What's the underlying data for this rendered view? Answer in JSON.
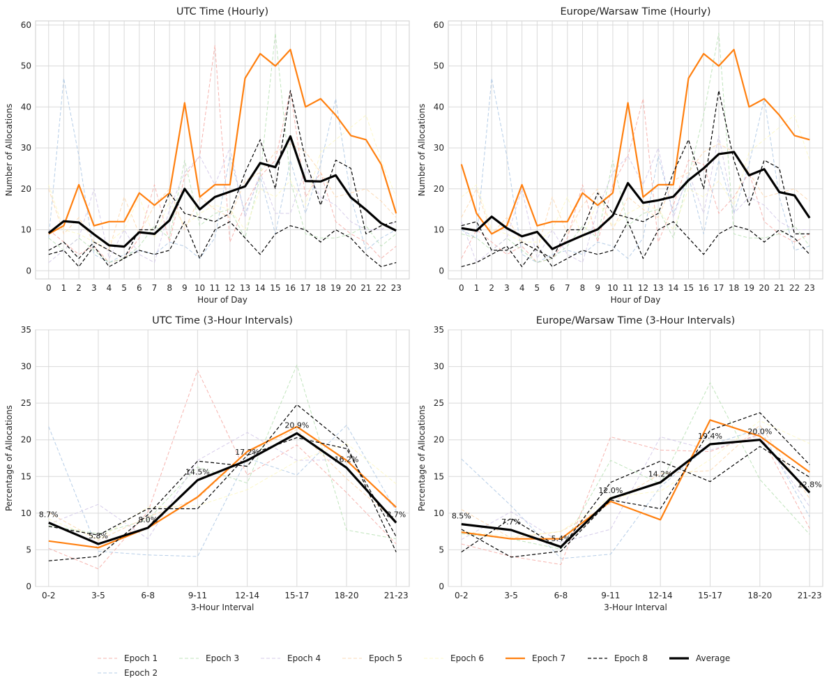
{
  "figure": {
    "legend": {
      "placement": "bottom-center",
      "entries": [
        "Epoch 1",
        "Epoch 2",
        "Epoch 3",
        "Epoch 4",
        "Epoch 5",
        "Epoch 6",
        "Epoch 7",
        "Epoch 8",
        "Average"
      ]
    }
  },
  "series_styles": {
    "Epoch 1": {
      "color": "#f4a6a0",
      "dash": "dashed",
      "emphasis": "faint"
    },
    "Epoch 2": {
      "color": "#a8c4e3",
      "dash": "dashed",
      "emphasis": "faint"
    },
    "Epoch 3": {
      "color": "#b5dfb0",
      "dash": "dashed",
      "emphasis": "faint"
    },
    "Epoch 4": {
      "color": "#cfc3e6",
      "dash": "dashed",
      "emphasis": "faint"
    },
    "Epoch 5": {
      "color": "#fbd3a8",
      "dash": "dashed",
      "emphasis": "faint"
    },
    "Epoch 6": {
      "color": "#fcf7c0",
      "dash": "dashed",
      "emphasis": "faint"
    },
    "Epoch 7": {
      "color": "#ff7f0e",
      "dash": "solid",
      "emphasis": "medium"
    },
    "Epoch 8": {
      "color": "#000000",
      "dash": "dashed",
      "emphasis": "medium"
    },
    "Average": {
      "color": "#000000",
      "dash": "solid",
      "emphasis": "bold"
    }
  },
  "chart_data": [
    {
      "type": "line",
      "title": "UTC Time (Hourly)",
      "xlabel": "Hour of Day",
      "ylabel": "Number of Allocations",
      "x": [
        "0",
        "1",
        "2",
        "3",
        "4",
        "5",
        "6",
        "7",
        "8",
        "9",
        "10",
        "11",
        "12",
        "13",
        "14",
        "15",
        "16",
        "17",
        "18",
        "19",
        "20",
        "21",
        "22",
        "23"
      ],
      "ylim": [
        -2,
        61
      ],
      "yticks": [
        0,
        10,
        20,
        30,
        40,
        50,
        60
      ],
      "grid": true,
      "series": [
        {
          "name": "Epoch 1",
          "values": [
            10,
            7,
            4,
            6,
            2,
            3,
            8,
            21,
            7,
            23,
            28,
            55,
            7,
            16,
            23,
            27,
            44,
            18,
            24,
            12,
            9,
            7,
            3,
            6
          ]
        },
        {
          "name": "Epoch 2",
          "values": [
            8,
            47,
            28,
            4,
            2,
            4,
            5,
            4,
            7,
            6,
            3,
            8,
            28,
            14,
            23,
            9,
            27,
            14,
            26,
            42,
            18,
            5,
            8,
            10
          ]
        },
        {
          "name": "Epoch 3",
          "values": [
            8,
            5,
            8,
            5,
            2,
            3,
            6,
            11,
            8,
            27,
            11,
            14,
            15,
            8,
            23,
            58,
            22,
            9,
            8,
            8,
            9,
            11,
            6,
            9
          ]
        },
        {
          "name": "Epoch 4",
          "values": [
            2,
            5,
            8,
            20,
            3,
            10,
            4,
            2,
            15,
            24,
            28,
            21,
            30,
            13,
            24,
            14,
            14,
            25,
            18,
            16,
            12,
            10,
            10,
            12
          ]
        },
        {
          "name": "Epoch 5",
          "values": [
            20,
            9,
            13,
            7,
            5,
            18,
            9,
            16,
            20,
            10,
            18,
            15,
            13,
            22,
            24,
            29,
            31,
            29,
            24,
            18,
            19,
            20,
            17,
            13
          ]
        },
        {
          "name": "Epoch 6",
          "values": [
            21,
            10,
            9,
            7,
            7,
            10,
            18,
            8,
            17,
            11,
            14,
            16,
            15,
            10,
            20,
            18,
            22,
            16,
            29,
            32,
            35,
            38,
            27,
            18
          ]
        },
        {
          "name": "Epoch 7",
          "values": [
            9,
            11,
            21,
            11,
            12,
            12,
            19,
            16,
            19,
            41,
            18,
            21,
            21,
            47,
            53,
            50,
            54,
            40,
            42,
            38,
            33,
            32,
            26,
            14
          ]
        },
        {
          "name": "Epoch 8",
          "values": [
            5,
            7,
            3,
            7,
            5,
            3,
            10,
            10,
            19,
            14,
            13,
            12,
            14,
            24,
            32,
            20,
            44,
            27,
            16,
            27,
            25,
            9,
            11,
            12
          ]
        },
        {
          "name": "Epoch 8",
          "values": [
            4,
            5,
            1,
            6,
            1,
            3,
            5,
            4,
            5,
            12,
            3,
            10,
            12,
            8,
            4,
            9,
            11,
            10,
            7,
            10,
            8,
            4,
            1,
            2
          ]
        },
        {
          "name": "Average",
          "values": [
            9.2,
            12.1,
            11.8,
            8.9,
            6.2,
            5.9,
            9.4,
            9.0,
            12.3,
            20.0,
            15.0,
            18.0,
            19.3,
            20.6,
            26.3,
            25.3,
            32.8,
            21.9,
            21.8,
            23.3,
            17.9,
            14.9,
            11.6,
            9.8
          ]
        }
      ]
    },
    {
      "type": "line",
      "title": "Europe/Warsaw Time (Hourly)",
      "xlabel": "Hour of Day",
      "ylabel": "Number of Allocations",
      "x": [
        "0",
        "1",
        "2",
        "3",
        "4",
        "5",
        "6",
        "7",
        "8",
        "9",
        "10",
        "11",
        "12",
        "13",
        "14",
        "15",
        "16",
        "17",
        "18",
        "19",
        "20",
        "21",
        "22",
        "23"
      ],
      "ylim": [
        -2,
        61
      ],
      "yticks": [
        0,
        10,
        20,
        30,
        40,
        50,
        60
      ],
      "grid": true,
      "series": [
        {
          "name": "Epoch 1",
          "values": [
            3,
            10,
            7,
            4,
            6,
            2,
            3,
            8,
            21,
            7,
            21,
            28,
            42,
            7,
            16,
            27,
            26,
            14,
            18,
            24,
            12,
            9,
            7,
            9
          ]
        },
        {
          "name": "Epoch 2",
          "values": [
            10,
            8,
            47,
            28,
            4,
            2,
            4,
            5,
            4,
            7,
            6,
            3,
            8,
            28,
            14,
            23,
            9,
            27,
            14,
            26,
            42,
            18,
            5,
            6
          ]
        },
        {
          "name": "Epoch 3",
          "values": [
            9,
            8,
            5,
            8,
            5,
            2,
            3,
            6,
            11,
            8,
            27,
            11,
            14,
            15,
            8,
            23,
            38,
            58,
            9,
            8,
            8,
            9,
            11,
            6
          ]
        },
        {
          "name": "Epoch 4",
          "values": [
            12,
            2,
            5,
            8,
            20,
            3,
            10,
            4,
            2,
            15,
            24,
            28,
            21,
            30,
            13,
            24,
            14,
            33,
            14,
            18,
            16,
            12,
            10,
            10
          ]
        },
        {
          "name": "Epoch 5",
          "values": [
            13,
            20,
            9,
            13,
            7,
            5,
            18,
            9,
            16,
            20,
            10,
            18,
            15,
            13,
            22,
            24,
            29,
            31,
            29,
            24,
            18,
            19,
            20,
            17
          ]
        },
        {
          "name": "Epoch 6",
          "values": [
            18,
            21,
            10,
            9,
            7,
            7,
            10,
            18,
            8,
            17,
            11,
            14,
            16,
            15,
            10,
            20,
            18,
            22,
            16,
            29,
            32,
            35,
            38,
            27
          ]
        },
        {
          "name": "Epoch 7",
          "values": [
            26,
            14,
            9,
            11,
            21,
            11,
            12,
            12,
            19,
            16,
            19,
            41,
            18,
            21,
            21,
            47,
            53,
            50,
            54,
            40,
            42,
            38,
            33,
            32
          ]
        },
        {
          "name": "Epoch 8",
          "values": [
            11,
            12,
            5,
            5,
            7,
            5,
            3,
            10,
            10,
            19,
            14,
            13,
            12,
            14,
            24,
            32,
            20,
            44,
            27,
            16,
            27,
            25,
            9,
            9
          ]
        },
        {
          "name": "Epoch 8",
          "values": [
            1,
            2,
            4,
            6,
            1,
            6,
            1,
            3,
            5,
            4,
            5,
            12,
            3,
            10,
            12,
            8,
            4,
            9,
            11,
            10,
            7,
            10,
            8,
            4
          ]
        },
        {
          "name": "Average",
          "values": [
            10.4,
            9.8,
            13.2,
            10.4,
            8.4,
            9.5,
            5.3,
            7.0,
            8.6,
            10.1,
            13.5,
            21.4,
            16.6,
            17.2,
            18.1,
            22.1,
            25.0,
            28.5,
            29.0,
            23.3,
            24.8,
            19.2,
            18.4,
            12.9
          ]
        }
      ]
    },
    {
      "type": "line",
      "title": "UTC Time (3-Hour Intervals)",
      "xlabel": "3-Hour Interval",
      "ylabel": "Percentage of Allocations",
      "x": [
        "0-2",
        "3-5",
        "6-8",
        "9-11",
        "12-14",
        "15-17",
        "18-20",
        "21-23"
      ],
      "ylim": [
        0,
        35
      ],
      "yticks": [
        0,
        5,
        10,
        15,
        20,
        25,
        30,
        35
      ],
      "grid": true,
      "series": [
        {
          "name": "Epoch 1",
          "values": [
            5.2,
            2.4,
            10.2,
            29.5,
            15.2,
            19.3,
            12.8,
            5.8
          ]
        },
        {
          "name": "Epoch 2",
          "values": [
            21.8,
            4.8,
            4.3,
            4.1,
            17.5,
            15.2,
            22.0,
            10.3
          ]
        },
        {
          "name": "Epoch 3",
          "values": [
            8.3,
            7.2,
            9.1,
            16.3,
            14.1,
            30.2,
            7.7,
            6.5
          ]
        },
        {
          "name": "Epoch 4",
          "values": [
            8.5,
            11.2,
            6.5,
            17.2,
            21.0,
            17.2,
            17.3,
            10.6
          ]
        },
        {
          "name": "Epoch 5",
          "values": [
            10.1,
            6.3,
            9.5,
            12.0,
            18.3,
            21.4,
            14.7,
            8.9
          ]
        },
        {
          "name": "Epoch 6",
          "values": [
            9.2,
            6.5,
            10.8,
            11.0,
            13.2,
            17.1,
            19.5,
            14.0
          ]
        },
        {
          "name": "Epoch 7",
          "values": [
            6.2,
            5.3,
            8.0,
            12.2,
            18.4,
            21.8,
            17.2,
            10.8
          ]
        },
        {
          "name": "Epoch 8",
          "values": [
            8.2,
            7.0,
            10.6,
            10.6,
            17.9,
            20.3,
            18.8,
            6.8
          ]
        },
        {
          "name": "Epoch 8",
          "values": [
            3.5,
            4.1,
            9.8,
            17.1,
            16.4,
            24.8,
            19.3,
            4.7
          ]
        },
        {
          "name": "Average",
          "values": [
            8.7,
            5.8,
            8.0,
            14.5,
            17.2,
            20.9,
            16.2,
            8.7
          ]
        }
      ],
      "data_labels": [
        "8.7%",
        "5.8%",
        "8.0%",
        "14.5%",
        "17.2%",
        "20.9%",
        "16.2%",
        "8.7%"
      ]
    },
    {
      "type": "line",
      "title": "Europe/Warsaw Time (3-Hour Intervals)",
      "xlabel": "3-Hour Interval",
      "ylabel": "Percentage of Allocations",
      "x": [
        "0-2",
        "3-5",
        "6-8",
        "9-11",
        "12-14",
        "15-17",
        "18-20",
        "21-23"
      ],
      "ylim": [
        0,
        35
      ],
      "yticks": [
        0,
        5,
        10,
        15,
        20,
        25,
        30,
        35
      ],
      "grid": true,
      "series": [
        {
          "name": "Epoch 1",
          "values": [
            5.8,
            4.1,
            3.0,
            20.4,
            18.6,
            18.4,
            20.8,
            7.9
          ]
        },
        {
          "name": "Epoch 2",
          "values": [
            17.4,
            11.0,
            3.8,
            4.4,
            13.6,
            19.3,
            21.5,
            9.5
          ]
        },
        {
          "name": "Epoch 3",
          "values": [
            7.2,
            6.5,
            5.1,
            17.2,
            14.0,
            27.8,
            14.6,
            7.1
          ]
        },
        {
          "name": "Epoch 4",
          "values": [
            6.4,
            10.2,
            6.0,
            7.8,
            20.4,
            18.6,
            20.6,
            10.9
          ]
        },
        {
          "name": "Epoch 5",
          "values": [
            10.5,
            6.6,
            7.5,
            11.3,
            15.4,
            15.8,
            22.0,
            12.0
          ]
        },
        {
          "name": "Epoch 6",
          "values": [
            7.5,
            6.8,
            7.5,
            12.2,
            13.0,
            17.3,
            22.6,
            19.5
          ]
        },
        {
          "name": "Epoch 7",
          "values": [
            7.4,
            6.5,
            6.5,
            11.6,
            9.1,
            22.7,
            20.5,
            15.6
          ]
        },
        {
          "name": "Epoch 8",
          "values": [
            7.8,
            4.0,
            4.8,
            11.8,
            10.6,
            21.3,
            23.7,
            16.6
          ]
        },
        {
          "name": "Epoch 8",
          "values": [
            4.7,
            9.3,
            5.2,
            14.2,
            17.1,
            14.3,
            19.1,
            14.9
          ]
        },
        {
          "name": "Average",
          "values": [
            8.5,
            7.7,
            5.4,
            12.0,
            14.2,
            19.4,
            20.0,
            12.8
          ]
        }
      ],
      "data_labels": [
        "8.5%",
        "7.7%",
        "5.4%",
        "12.0%",
        "14.2%",
        "19.4%",
        "20.0%",
        "12.8%"
      ]
    }
  ]
}
